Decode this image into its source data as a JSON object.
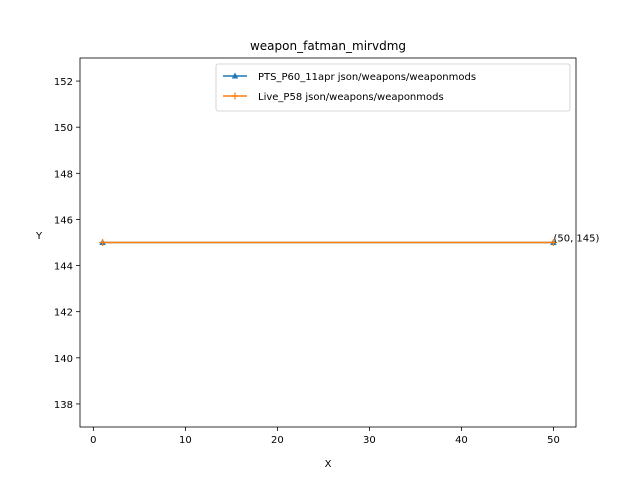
{
  "chart_data": {
    "type": "line",
    "title": "weapon_fatman_mirvdmg",
    "xlabel": "X",
    "ylabel": "Y",
    "xlim": [
      -1.45,
      52.45
    ],
    "ylim": [
      137,
      153
    ],
    "xticks": [
      0,
      10,
      20,
      30,
      40,
      50
    ],
    "yticks": [
      138,
      140,
      142,
      144,
      146,
      148,
      150,
      152
    ],
    "grid": false,
    "legend_position": "top-right",
    "series": [
      {
        "name": "PTS_P60_11apr json/weapons/weaponmods",
        "color": "#1f77b4",
        "marker": "triangle",
        "x": [
          1,
          50
        ],
        "y": [
          145,
          145
        ]
      },
      {
        "name": "Live_P58 json/weapons/weaponmods",
        "color": "#ff7f0e",
        "marker": "plus",
        "x": [
          1,
          50
        ],
        "y": [
          145,
          145
        ]
      }
    ],
    "annotations": [
      {
        "text": "(50, 145)",
        "x": 50,
        "y": 145
      }
    ]
  }
}
